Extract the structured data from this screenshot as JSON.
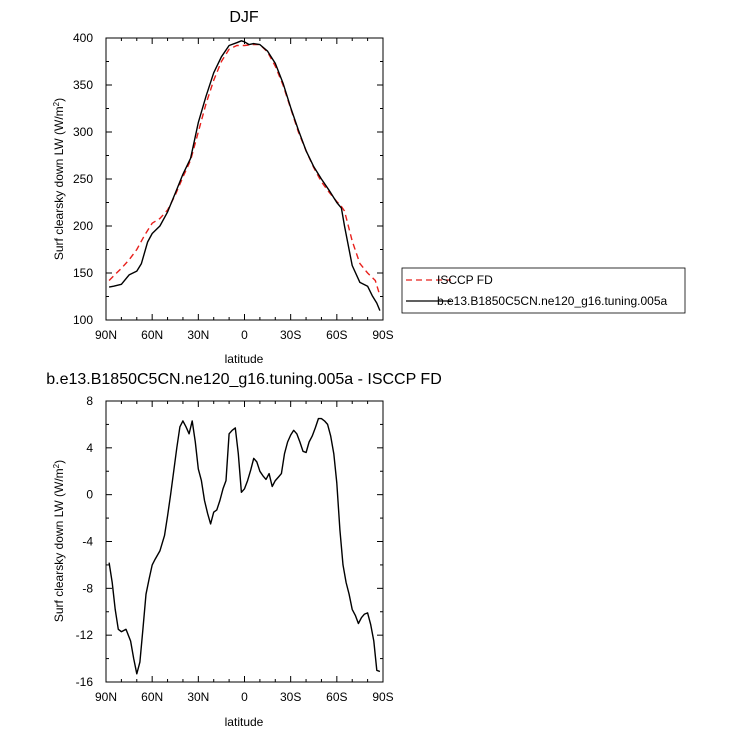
{
  "chart_data": [
    {
      "type": "line",
      "title": "DJF",
      "xlabel": "latitude",
      "ylabel": "Surf clearsky down LW (W/m",
      "ylabel_sup": "2",
      "ylabel_close": ")",
      "xlim": [
        90,
        -90
      ],
      "ylim": [
        100,
        400
      ],
      "xticks": [
        90,
        60,
        30,
        0,
        -30,
        -60,
        -90
      ],
      "xtick_labels": [
        "90N",
        "60N",
        "30N",
        "0",
        "30S",
        "60S",
        "90S"
      ],
      "yticks": [
        100,
        150,
        200,
        250,
        300,
        350,
        400
      ],
      "ytick_labels": [
        "100",
        "150",
        "200",
        "250",
        "300",
        "350",
        "400"
      ],
      "grid": false,
      "legend": "right",
      "series": [
        {
          "name": "ISCCP FD",
          "color": "#e8201c",
          "dash": "dashed",
          "x": [
            88,
            85,
            80,
            75,
            70,
            65,
            60,
            55,
            50,
            45,
            40,
            35,
            30,
            25,
            20,
            15,
            10,
            5,
            0,
            -5,
            -10,
            -15,
            -20,
            -25,
            -30,
            -35,
            -40,
            -45,
            -50,
            -55,
            -60,
            -62,
            -65,
            -70,
            -75,
            -80,
            -85,
            -88
          ],
          "y": [
            142,
            147,
            155,
            164,
            175,
            190,
            203,
            208,
            217,
            233,
            252,
            270,
            300,
            330,
            355,
            375,
            388,
            392,
            392,
            393,
            393,
            385,
            370,
            350,
            325,
            300,
            280,
            262,
            247,
            236,
            226,
            223,
            216,
            184,
            160,
            150,
            142,
            126
          ]
        },
        {
          "name": "b.e13.B1850C5CN.ne120_g16.tuning.005a",
          "color": "#000000",
          "dash": "solid",
          "x": [
            88,
            85,
            80,
            75,
            70,
            67,
            63,
            60,
            55,
            50,
            45,
            40,
            35,
            30,
            25,
            20,
            15,
            10,
            5,
            2,
            0,
            -3,
            -6,
            -10,
            -15,
            -20,
            -25,
            -30,
            -35,
            -40,
            -45,
            -50,
            -55,
            -60,
            -63,
            -65,
            -70,
            -75,
            -80,
            -83,
            -86,
            -88
          ],
          "y": [
            135,
            136,
            138,
            148,
            152,
            160,
            183,
            192,
            200,
            215,
            235,
            255,
            272,
            310,
            338,
            363,
            380,
            392,
            395,
            397,
            396,
            393,
            394,
            393,
            386,
            373,
            352,
            326,
            302,
            280,
            263,
            250,
            238,
            225,
            219,
            200,
            158,
            140,
            136,
            126,
            118,
            110
          ]
        }
      ]
    },
    {
      "type": "line",
      "title": "b.e13.B1850C5CN.ne120_g16.tuning.005a - ISCCP FD",
      "xlabel": "latitude",
      "ylabel": "Surf clearsky down LW (W/m",
      "ylabel_sup": "2",
      "ylabel_close": ")",
      "xlim": [
        90,
        -90
      ],
      "ylim": [
        -16,
        8
      ],
      "xticks": [
        90,
        60,
        30,
        0,
        -30,
        -60,
        -90
      ],
      "xtick_labels": [
        "90N",
        "60N",
        "30N",
        "0",
        "30S",
        "60S",
        "90S"
      ],
      "yticks": [
        -16,
        -12,
        -8,
        -4,
        0,
        4,
        8
      ],
      "ytick_labels": [
        "-16",
        "-12",
        "-8",
        "-4",
        "0",
        "4",
        "8"
      ],
      "grid": false,
      "series": [
        {
          "color": "#000000",
          "dash": "solid",
          "x": [
            88,
            86,
            84,
            82,
            80,
            77,
            74,
            72,
            70,
            68,
            66,
            64,
            62,
            60,
            58,
            55,
            52,
            50,
            48,
            46,
            44,
            42,
            40,
            38,
            36,
            34,
            32,
            30,
            28,
            26,
            24,
            22,
            20,
            18,
            16,
            14,
            12,
            10,
            8,
            6,
            4,
            2,
            0,
            -2,
            -4,
            -6,
            -8,
            -10,
            -12,
            -14,
            -16,
            -18,
            -20,
            -22,
            -24,
            -26,
            -28,
            -30,
            -32,
            -34,
            -36,
            -38,
            -40,
            -42,
            -44,
            -46,
            -48,
            -50,
            -52,
            -54,
            -56,
            -58,
            -60,
            -62,
            -64,
            -66,
            -68,
            -70,
            -72,
            -74,
            -76,
            -78,
            -80,
            -82,
            -84,
            -86,
            -88
          ],
          "y": [
            -5.8,
            -7.5,
            -9.8,
            -11.5,
            -11.7,
            -11.5,
            -12.5,
            -14,
            -15.3,
            -14.3,
            -11.5,
            -8.5,
            -7.2,
            -6,
            -5.5,
            -4.8,
            -3.5,
            -1.8,
            0,
            2,
            4,
            5.8,
            6.3,
            5.8,
            5.2,
            6.3,
            4.5,
            2.2,
            1.2,
            -0.5,
            -1.6,
            -2.5,
            -1.5,
            -1.3,
            -0.5,
            0.5,
            1.2,
            5.2,
            5.5,
            5.7,
            3.5,
            0.2,
            0.5,
            1.2,
            2.1,
            3.1,
            2.8,
            2,
            1.6,
            1.3,
            1.8,
            0.7,
            1.2,
            1.5,
            1.8,
            3.5,
            4.5,
            5.1,
            5.5,
            5.2,
            4.5,
            3.7,
            3.6,
            4.5,
            5,
            5.7,
            6.5,
            6.5,
            6.3,
            6,
            5,
            3.5,
            1,
            -3,
            -6,
            -7.5,
            -8.5,
            -9.8,
            -10.3,
            -11,
            -10.5,
            -10.2,
            -10.1,
            -11.1,
            -12.5,
            -15,
            -15.1
          ]
        }
      ]
    }
  ]
}
